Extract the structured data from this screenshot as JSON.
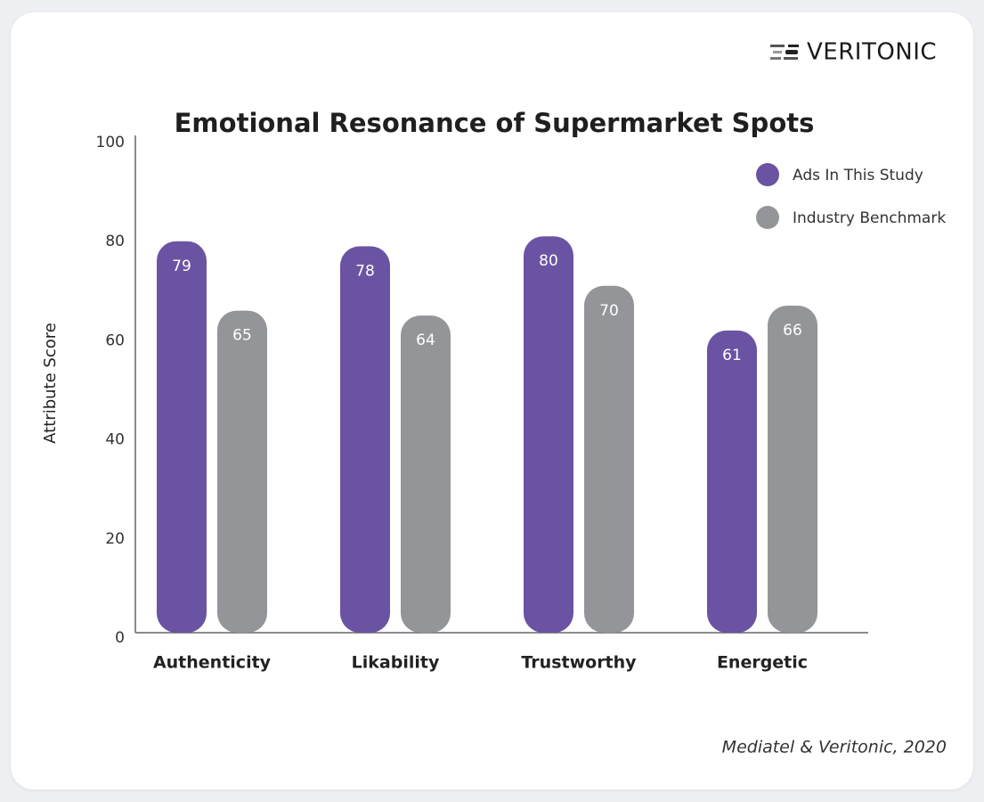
{
  "brand": "VERITONIC",
  "chart_data": {
    "type": "bar",
    "title": "Emotional Resonance of Supermarket Spots",
    "y_label": "Attribute Score",
    "source": "Mediatel & Veritonic, 2020",
    "categories": [
      "Authenticity",
      "Likability",
      "Trustworthy",
      "Energetic"
    ],
    "series": [
      {
        "name": "Ads In This Study",
        "color": "#6a53a2",
        "values": [
          79,
          78,
          80,
          61
        ]
      },
      {
        "name": "Industry Benchmark",
        "color": "#939598",
        "values": [
          65,
          64,
          70,
          66
        ]
      }
    ],
    "ylim": [
      0,
      100
    ],
    "yticks": [
      0,
      20,
      40,
      60,
      80,
      100
    ],
    "grid": false,
    "legend": "top-right"
  }
}
